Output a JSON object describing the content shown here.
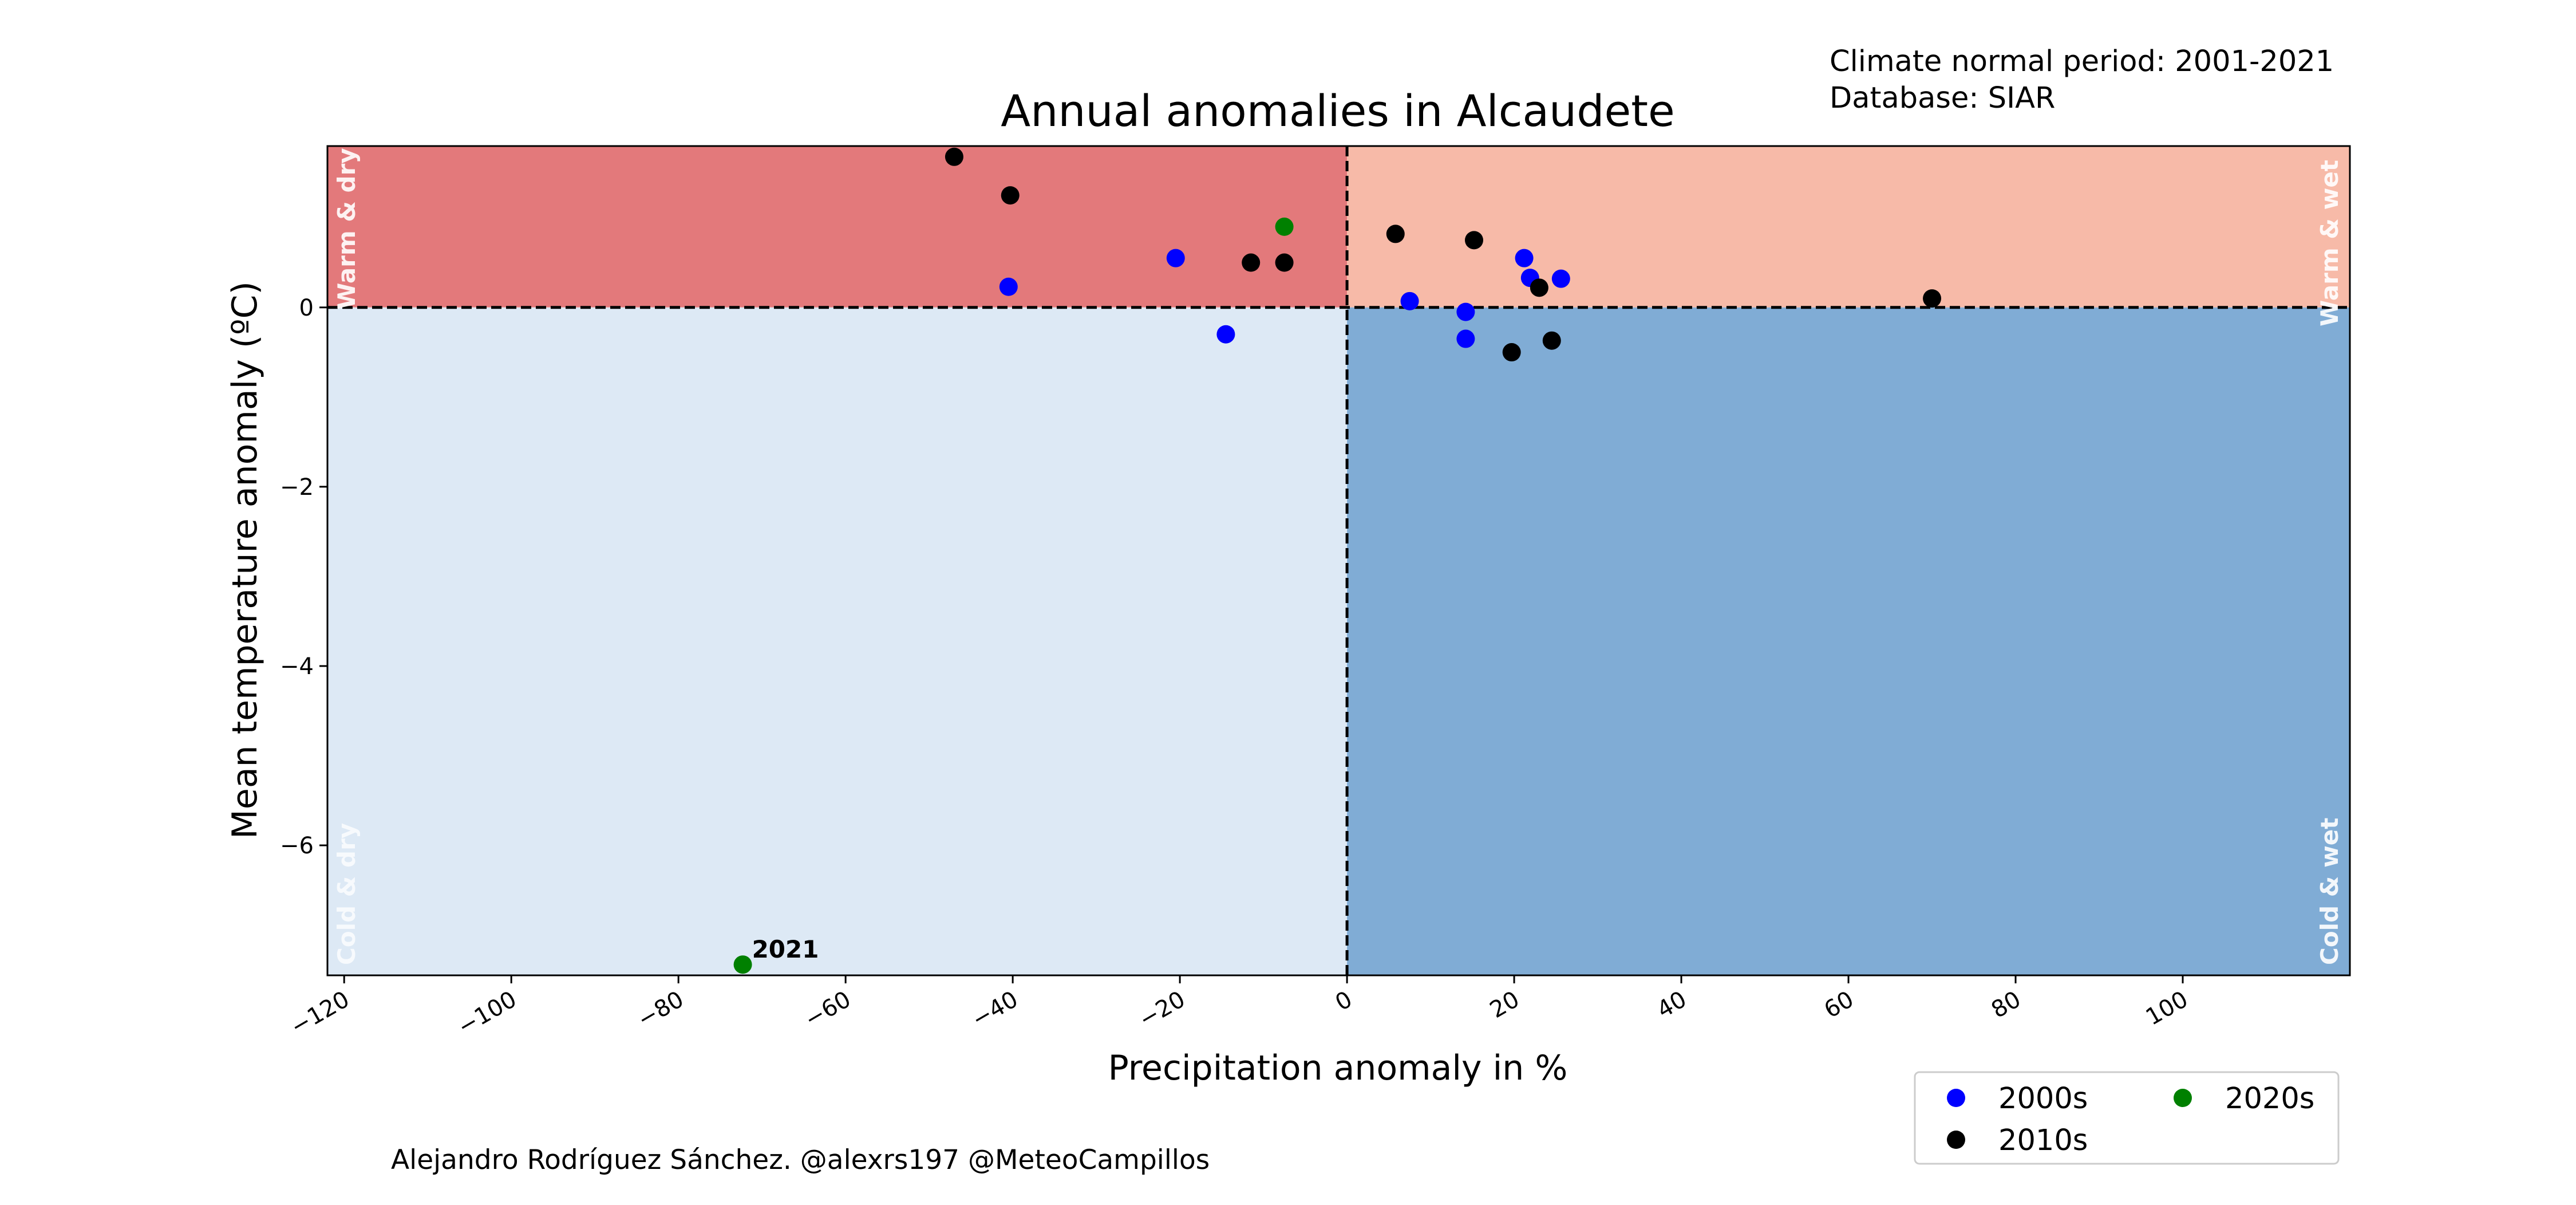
{
  "chart_data": {
    "type": "scatter",
    "title": "Annual anomalies in Alcaudete",
    "xlabel": "Precipitation anomaly in %",
    "ylabel": "Mean temperature anomaly (ºC)",
    "xlim": [
      -122,
      120
    ],
    "ylim": [
      -7.45,
      1.8
    ],
    "xticks": [
      -120,
      -100,
      -80,
      -60,
      -40,
      -20,
      0,
      20,
      40,
      60,
      80,
      100
    ],
    "xtick_labels": [
      "−120",
      "−100",
      "−80",
      "−60",
      "−40",
      "−20",
      "0",
      "20",
      "40",
      "60",
      "80",
      "100"
    ],
    "yticks": [
      -6,
      -4,
      -2,
      0
    ],
    "ytick_labels": [
      "−6",
      "−4",
      "−2",
      "0"
    ],
    "grid": false,
    "legend_placement": "bottom-right, below axes",
    "quadrants": [
      {
        "name": "Warm & dry",
        "color": "#e3797b"
      },
      {
        "name": "Warm & wet",
        "color": "#f7baa8"
      },
      {
        "name": "Cold & dry",
        "color": "#dde9f5"
      },
      {
        "name": "Cold & wet",
        "color": "#80acd5"
      }
    ],
    "series": [
      {
        "name": "2000s",
        "color": "#0000ff",
        "points": [
          [
            -40.5,
            0.23
          ],
          [
            -20.5,
            0.55
          ],
          [
            -14.5,
            -0.3
          ],
          [
            7.5,
            0.07
          ],
          [
            14.2,
            -0.05
          ],
          [
            14.2,
            -0.35
          ],
          [
            21.2,
            0.55
          ],
          [
            21.9,
            0.33
          ],
          [
            25.6,
            0.32
          ]
        ]
      },
      {
        "name": "2010s",
        "color": "#000000",
        "points": [
          [
            -47,
            1.68
          ],
          [
            -40.3,
            1.25
          ],
          [
            -11.5,
            0.5
          ],
          [
            -7.5,
            0.5
          ],
          [
            5.8,
            0.82
          ],
          [
            15.2,
            0.75
          ],
          [
            19.7,
            -0.5
          ],
          [
            23,
            0.22
          ],
          [
            24.5,
            -0.37
          ],
          [
            70,
            0.1
          ]
        ]
      },
      {
        "name": "2020s",
        "color": "#008000",
        "points": [
          [
            -7.5,
            0.9
          ],
          [
            -72.3,
            -7.33
          ]
        ]
      }
    ],
    "annotations": [
      {
        "text": "2021",
        "x": -72.3,
        "y": -7.33
      }
    ]
  },
  "notes": {
    "climate_period": "Climate normal period: 2001-2021",
    "database": "Database: SIAR",
    "credit": "Alejandro Rodríguez Sánchez. @alexrs197 @MeteoCampillos"
  }
}
